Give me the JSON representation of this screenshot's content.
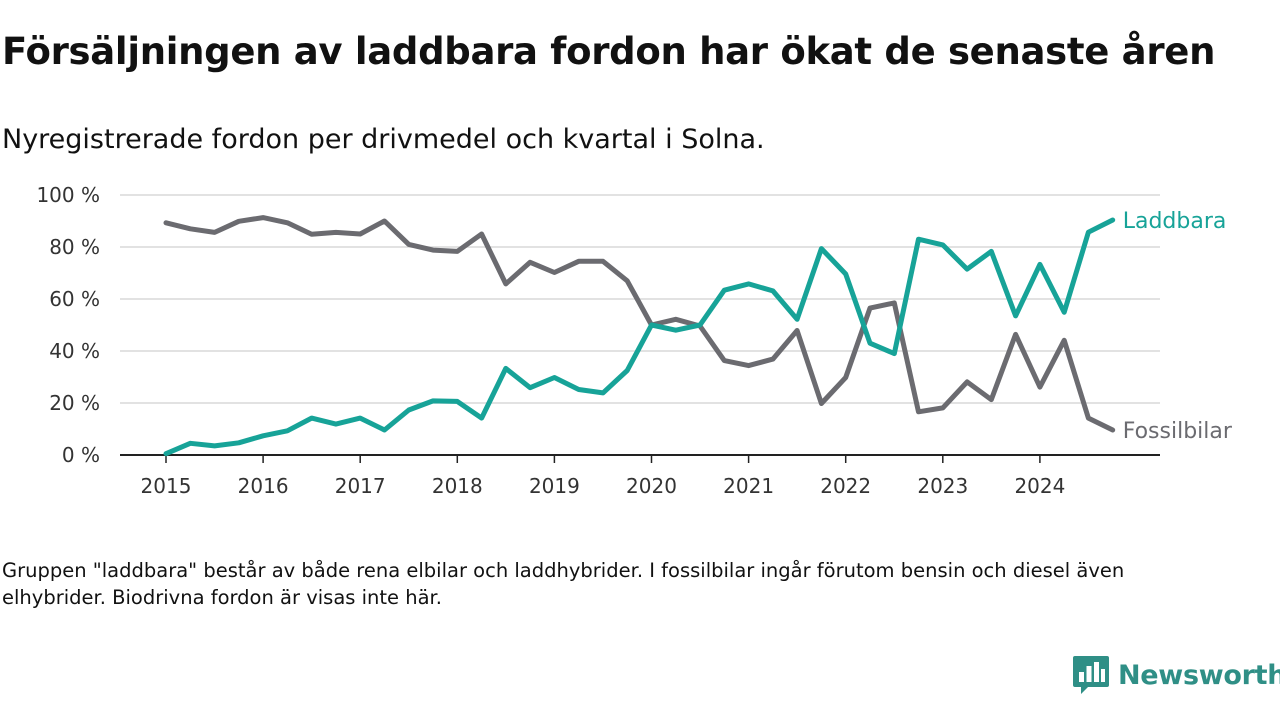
{
  "title": "Försäljningen av laddbara fordon har ökat de senaste åren",
  "subtitle": "Nyregistrerade fordon per drivmedel och kvartal i Solna.",
  "note": "Gruppen \"laddbara\" består av både rena elbilar och laddhybrider. I fossilbilar ingår förutom bensin och diesel även elhybrider. Biodrivna fordon är visas inte här.",
  "brand": "Newsworthy",
  "colors": {
    "laddbara": "#17a398",
    "fossil": "#6b6b70",
    "grid": "#d9d9d9",
    "axis": "#222222",
    "brand": "#2f8f86"
  },
  "chart_data": {
    "type": "line",
    "title": "Försäljningen av laddbara fordon har ökat de senaste åren",
    "xlabel": "",
    "ylabel": "",
    "ylim": [
      0,
      100
    ],
    "y_ticks": [
      0,
      20,
      40,
      60,
      80,
      100
    ],
    "y_tick_labels": [
      "0 %",
      "20 %",
      "40 %",
      "60 %",
      "80 %",
      "100 %"
    ],
    "x_ticks": [
      2015,
      2016,
      2017,
      2018,
      2019,
      2020,
      2021,
      2022,
      2023,
      2024
    ],
    "x_range": [
      2014.5,
      2025.25
    ],
    "x": [
      2015.0,
      2015.25,
      2015.5,
      2015.75,
      2016.0,
      2016.25,
      2016.5,
      2016.75,
      2017.0,
      2017.25,
      2017.5,
      2017.75,
      2018.0,
      2018.25,
      2018.5,
      2018.75,
      2019.0,
      2019.25,
      2019.5,
      2019.75,
      2020.0,
      2020.25,
      2020.5,
      2020.75,
      2021.0,
      2021.25,
      2021.5,
      2021.75,
      2022.0,
      2022.25,
      2022.5,
      2022.75,
      2023.0,
      2023.25,
      2023.5,
      2023.75,
      2024.0,
      2024.25,
      2024.5,
      2024.75
    ],
    "series": [
      {
        "name": "Laddbara",
        "color": "#17a398",
        "values": [
          0.5,
          4.5,
          3.5,
          4.7,
          7.4,
          9.3,
          14.2,
          11.9,
          14.2,
          9.6,
          17.3,
          20.8,
          20.6,
          14.2,
          33.3,
          25.9,
          29.8,
          25.2,
          23.9,
          32.5,
          50.0,
          48.0,
          50.0,
          63.4,
          65.8,
          63.1,
          52.2,
          79.4,
          69.6,
          43.0,
          39.0,
          83.0,
          80.8,
          71.5,
          78.3,
          53.5,
          73.3,
          54.9,
          85.7,
          90.4
        ]
      },
      {
        "name": "Fossilbilar",
        "color": "#6b6b70",
        "values": [
          89.3,
          87.0,
          85.6,
          89.9,
          91.3,
          89.3,
          84.9,
          85.6,
          85.0,
          90.0,
          81.0,
          78.8,
          78.3,
          85.0,
          65.8,
          74.1,
          70.2,
          74.5,
          74.5,
          67.0,
          50.0,
          52.2,
          49.6,
          36.3,
          34.4,
          36.9,
          47.9,
          19.8,
          29.8,
          56.5,
          58.5,
          16.6,
          18.1,
          28.1,
          21.3,
          46.4,
          26.1,
          44.1,
          14.2,
          9.6
        ]
      }
    ]
  }
}
